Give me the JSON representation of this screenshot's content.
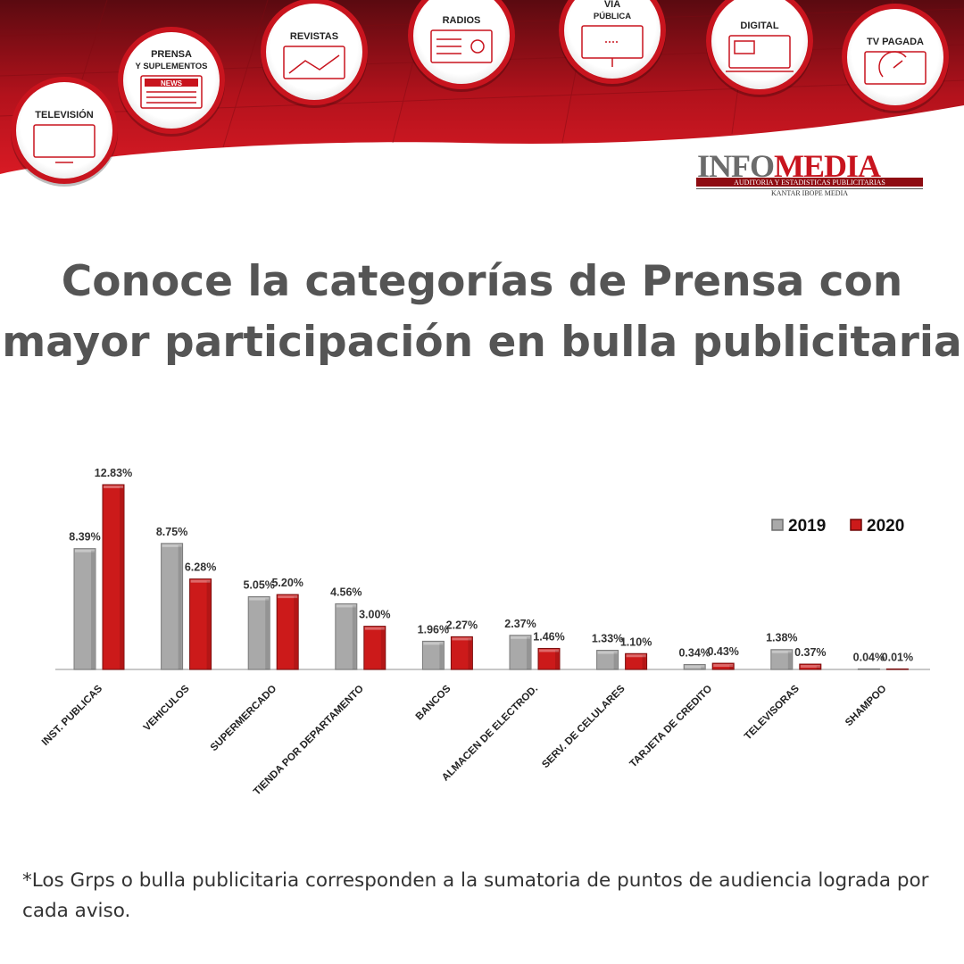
{
  "banner": {
    "media_categories": [
      {
        "label": "TELEVISIÓN"
      },
      {
        "label": "PRENSA",
        "sub": "Y SUPLEMENTOS"
      },
      {
        "label": "REVISTAS"
      },
      {
        "label": "RADIOS"
      },
      {
        "label": "VÍA",
        "sub": "PÚBLICA"
      },
      {
        "label": "DIGITAL"
      },
      {
        "label": "TV PAGADA"
      }
    ],
    "news_icon_text": "NEWS",
    "logo": {
      "name_part1": "INFO",
      "name_part2": "MEDIA",
      "tagline": "AUDITORIA Y ESTADISTICAS PUBLICITARIAS",
      "subline": "KANTAR IBOPE MEDIA"
    },
    "colors": {
      "primary_red": "#c8141e",
      "dark_red": "#8e0c12",
      "logo_grey": "#6b6b6b"
    }
  },
  "headline": {
    "line1": "Conoce la categorías de Prensa con",
    "line2": "mayor participación en bulla publicitaria"
  },
  "chart_data": {
    "type": "bar",
    "categories": [
      "INST. PUBLICAS",
      "VEHICULOS",
      "SUPERMERCADO",
      "TIENDA POR DEPARTAMENTO",
      "BANCOS",
      "ALMACEN DE ELECTROD.",
      "SERV. DE CELULARES",
      "TARJETA DE CREDITO",
      "TELEVISORAS",
      "SHAMPOO"
    ],
    "series": [
      {
        "name": "2019",
        "values": [
          8.39,
          8.75,
          5.05,
          4.56,
          1.96,
          2.37,
          1.33,
          0.34,
          1.38,
          0.04
        ],
        "labels": [
          "8.39%",
          "8.75%",
          "5.05%",
          "4.56%",
          "1.96%",
          "2.37%",
          "1.33%",
          "0.34%",
          "1.38%",
          "0.04%"
        ],
        "color": "#a9a9a9"
      },
      {
        "name": "2020",
        "values": [
          12.83,
          6.28,
          5.2,
          3.0,
          2.27,
          1.46,
          1.1,
          0.43,
          0.37,
          0.01
        ],
        "labels": [
          "12.83%",
          "6.28%",
          "5.20%",
          "3.00%",
          "2.27%",
          "1.46%",
          "1.10%",
          "0.43%",
          "0.37%",
          "0.01%"
        ],
        "color": "#cc1a1a"
      }
    ],
    "ylim": [
      0,
      13.5
    ],
    "grid": false,
    "legend_position": "top-right"
  },
  "footnote": "*Los Grps o bulla publicitaria corresponden a la sumatoria de puntos de audiencia lograda por cada aviso."
}
